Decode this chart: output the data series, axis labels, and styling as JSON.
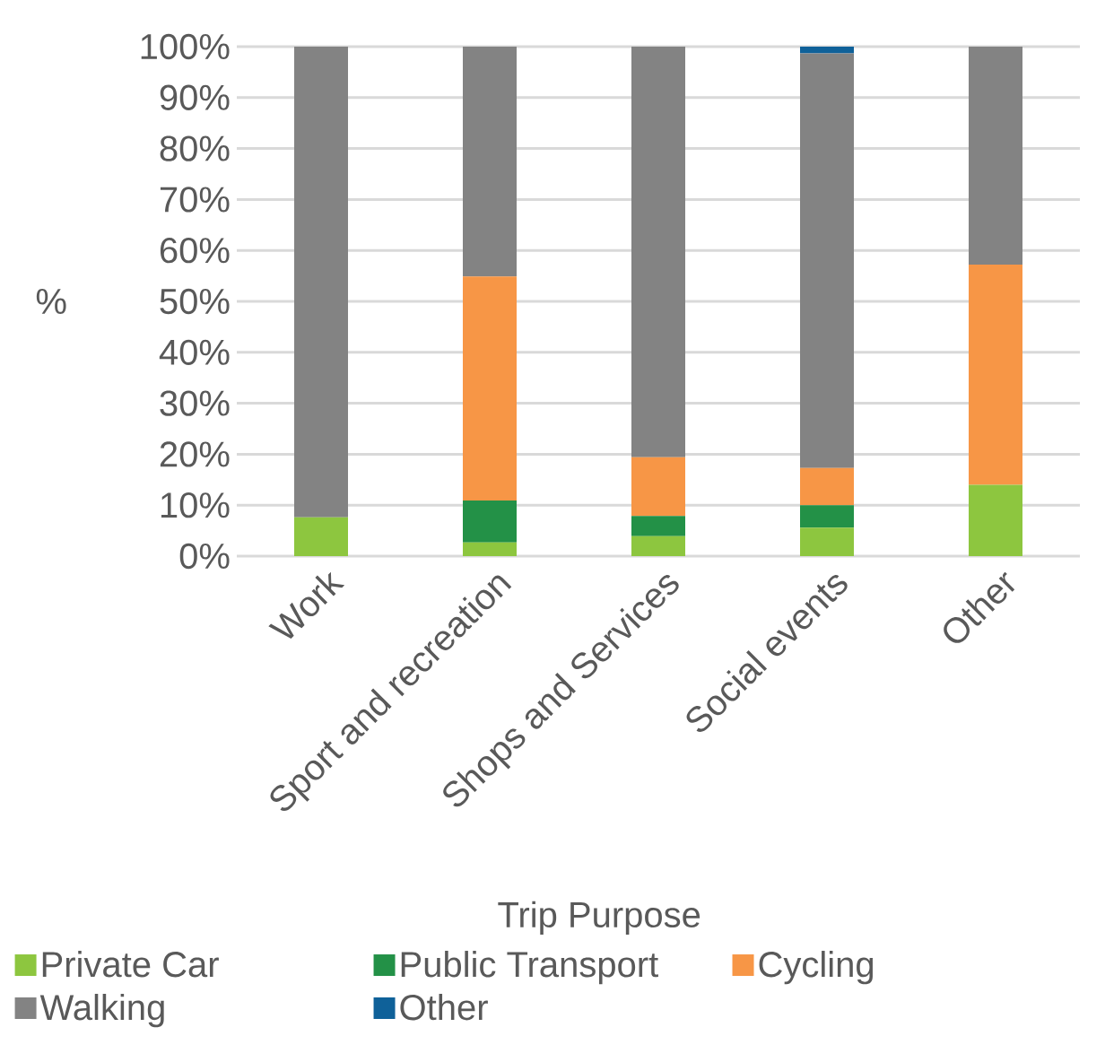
{
  "chart_data": {
    "type": "bar",
    "stacked": true,
    "xlabel": "Trip Purpose",
    "ylabel": "%",
    "categories": [
      "Work",
      "Sport and recreation",
      "Shops and Services",
      "Social events",
      "Other"
    ],
    "series": [
      {
        "name": "Private Car",
        "color": "#8dc63f",
        "values": [
          7.6,
          2.7,
          3.9,
          5.6,
          14
        ]
      },
      {
        "name": "Public Transport",
        "color": "#239147",
        "values": [
          0,
          8.2,
          4.0,
          4.4,
          0
        ]
      },
      {
        "name": "Cycling",
        "color": "#f79646",
        "values": [
          0,
          44,
          11.5,
          7.3,
          43.2
        ]
      },
      {
        "name": "Walking",
        "color": "#838383",
        "values": [
          92.4,
          45.1,
          80.6,
          81.4,
          42.8
        ]
      },
      {
        "name": "Other",
        "color": "#0f6199",
        "values": [
          0,
          0,
          0,
          1.3,
          0
        ]
      }
    ],
    "ylim": [
      0,
      100
    ],
    "yticks": [
      {
        "value": 0,
        "label": "0%"
      },
      {
        "value": 10,
        "label": "10%"
      },
      {
        "value": 20,
        "label": "20%"
      },
      {
        "value": 30,
        "label": "30%"
      },
      {
        "value": 40,
        "label": "40%"
      },
      {
        "value": 50,
        "label": "50%"
      },
      {
        "value": 60,
        "label": "60%"
      },
      {
        "value": 70,
        "label": "70%"
      },
      {
        "value": 80,
        "label": "80%"
      },
      {
        "value": 90,
        "label": "90%"
      },
      {
        "value": 100,
        "label": "100%"
      }
    ],
    "grid": "y",
    "legend": "bottom"
  }
}
